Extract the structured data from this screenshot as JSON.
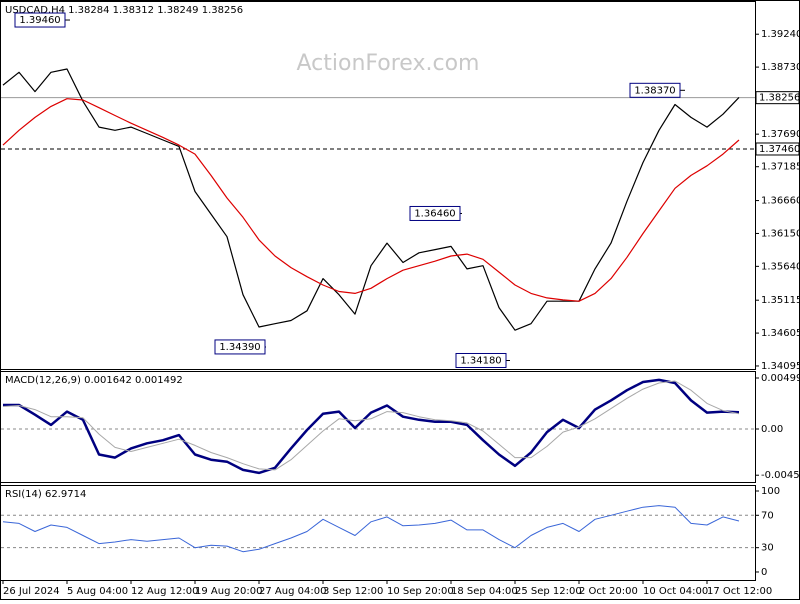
{
  "watermark": "ActionForex.com",
  "chart_data": [
    {
      "type": "line",
      "title": "USDCAD,H4  1.38284 1.38312 1.38249 1.38256",
      "ylim": [
        1.34048,
        1.39755
      ],
      "yticks": [
        {
          "value": 1.3924,
          "label": "1.39240"
        },
        {
          "value": 1.3873,
          "label": "1.38730"
        },
        {
          "value": 1.3769,
          "label": "1.37690"
        },
        1.37185,
        {
          "value": 1.3666,
          "label": "1.36660"
        },
        {
          "value": 1.3615,
          "label": "1.36150"
        },
        {
          "value": 1.3564,
          "label": "1.35640"
        },
        1.35115,
        1.34605,
        1.34095
      ],
      "series": [
        {
          "name": "USDCAD",
          "color": "#000000",
          "values": [
            1.3845,
            1.3865,
            1.3835,
            1.3865,
            1.387,
            1.382,
            1.378,
            1.3775,
            1.378,
            1.377,
            1.376,
            1.375,
            1.368,
            1.3645,
            1.361,
            1.352,
            1.347,
            1.3475,
            1.348,
            1.3495,
            1.3545,
            1.352,
            1.349,
            1.3565,
            1.36,
            1.357,
            1.3585,
            1.359,
            1.3595,
            1.356,
            1.3565,
            1.35,
            1.3465,
            1.3475,
            1.351,
            1.351,
            1.351,
            1.356,
            1.36,
            1.3665,
            1.3725,
            1.3775,
            1.3815,
            1.3795,
            1.378,
            1.38,
            1.3826
          ]
        },
        {
          "name": "MA",
          "color": "#dd0000",
          "values": [
            1.3752,
            1.3775,
            1.3795,
            1.3812,
            1.3824,
            1.3822,
            1.381,
            1.3798,
            1.3786,
            1.3775,
            1.3764,
            1.3752,
            1.3738,
            1.3705,
            1.367,
            1.364,
            1.3605,
            1.358,
            1.3562,
            1.3548,
            1.3535,
            1.3525,
            1.3522,
            1.353,
            1.3545,
            1.3558,
            1.3565,
            1.3572,
            1.358,
            1.3583,
            1.3575,
            1.3555,
            1.3535,
            1.3522,
            1.3515,
            1.3512,
            1.351,
            1.3522,
            1.3545,
            1.3578,
            1.3615,
            1.365,
            1.3685,
            1.3705,
            1.372,
            1.3738,
            1.376
          ]
        }
      ],
      "price_lines": [
        {
          "value": 1.38256,
          "label": "1.38256",
          "style": "solid"
        },
        {
          "value": 1.3746,
          "label": "1.37460",
          "style": "dashed"
        }
      ],
      "annotations": [
        {
          "value": 1.3946,
          "label": "1.39460"
        },
        {
          "value": 1.3837,
          "label": "1.38370"
        },
        {
          "value": 1.3646,
          "label": "1.36460"
        },
        {
          "value": 1.3439,
          "label": "1.34390"
        },
        {
          "value": 1.3418,
          "label": "1.34180"
        }
      ]
    },
    {
      "type": "line",
      "title": "MACD(12,26,9) 0.001642 0.001492",
      "ylim": [
        -0.005186,
        0.005675
      ],
      "yticks": [
        0.00499,
        {
          "value": 0,
          "label": "0.00"
        },
        -0.004522
      ],
      "levels": [
        0
      ],
      "series": [
        {
          "name": "MACD",
          "color": "#000080",
          "width": 2.5,
          "values": [
            0.00235,
            0.00235,
            0.0014,
            0.0004,
            0.0017,
            0.0009,
            -0.0025,
            -0.0028,
            -0.0019,
            -0.0014,
            -0.0011,
            -0.0006,
            -0.0025,
            -0.003,
            -0.0032,
            -0.004,
            -0.0043,
            -0.0038,
            -0.0019,
            -0.0001,
            0.0015,
            0.0017,
            0.0001,
            0.0016,
            0.0023,
            0.0012,
            0.0009,
            0.0007,
            0.0007,
            0.0004,
            -0.0011,
            -0.0025,
            -0.0036,
            -0.0023,
            -0.0003,
            0.0009,
            0.0001,
            0.0019,
            0.0028,
            0.0038,
            0.0046,
            0.0048,
            0.0045,
            0.0028,
            0.0016,
            0.0017,
            0.001642
          ]
        },
        {
          "name": "Signal",
          "color": "#a8a8a8",
          "width": 1,
          "values": [
            0.0022,
            0.0023,
            0.0019,
            0.0012,
            0.0012,
            0.0011,
            -0.0005,
            -0.0018,
            -0.0022,
            -0.0018,
            -0.0014,
            -0.001,
            -0.0016,
            -0.0023,
            -0.0028,
            -0.0034,
            -0.0039,
            -0.004,
            -0.003,
            -0.0016,
            -0.0002,
            0.001,
            0.0008,
            0.001,
            0.0017,
            0.0016,
            0.0012,
            0.0009,
            0.0008,
            0.0006,
            -0.0002,
            -0.0015,
            -0.0028,
            -0.0028,
            -0.0017,
            -0.0003,
            0.0002,
            0.001,
            0.002,
            0.003,
            0.0039,
            0.0045,
            0.0047,
            0.0038,
            0.0025,
            0.0018,
            0.001492
          ]
        }
      ]
    },
    {
      "type": "line",
      "title": "RSI(14) 62.9714",
      "ylim": [
        -9.9,
        107.4
      ],
      "yticks": [
        100,
        70,
        30,
        0
      ],
      "levels": [
        70,
        30
      ],
      "categories": [
        "26 Jul 2024",
        null,
        null,
        null,
        "5 Aug 04:00",
        null,
        null,
        null,
        "12 Aug 12:00",
        null,
        null,
        null,
        "19 Aug 20:00",
        null,
        null,
        null,
        "27 Aug 04:00",
        null,
        null,
        null,
        "3 Sep 12:00",
        null,
        null,
        null,
        "10 Sep 20:00",
        null,
        null,
        null,
        "18 Sep 04:00",
        null,
        null,
        null,
        "25 Sep 12:00",
        null,
        null,
        null,
        "2 Oct 20:00",
        null,
        null,
        null,
        "10 Oct 04:00",
        null,
        null,
        null,
        "17 Oct 12:00",
        null,
        null
      ],
      "series": [
        {
          "name": "RSI",
          "color": "#3a66d8",
          "width": 1,
          "values": [
            62,
            60,
            50,
            58,
            55,
            45,
            35,
            37,
            40,
            38,
            40,
            42,
            30,
            33,
            32,
            25,
            28,
            35,
            42,
            50,
            65,
            55,
            45,
            62,
            68,
            57,
            58,
            60,
            64,
            52,
            52,
            40,
            30,
            45,
            55,
            60,
            50,
            65,
            70,
            75,
            80,
            82,
            80,
            60,
            58,
            68,
            62.9714
          ]
        }
      ]
    }
  ]
}
